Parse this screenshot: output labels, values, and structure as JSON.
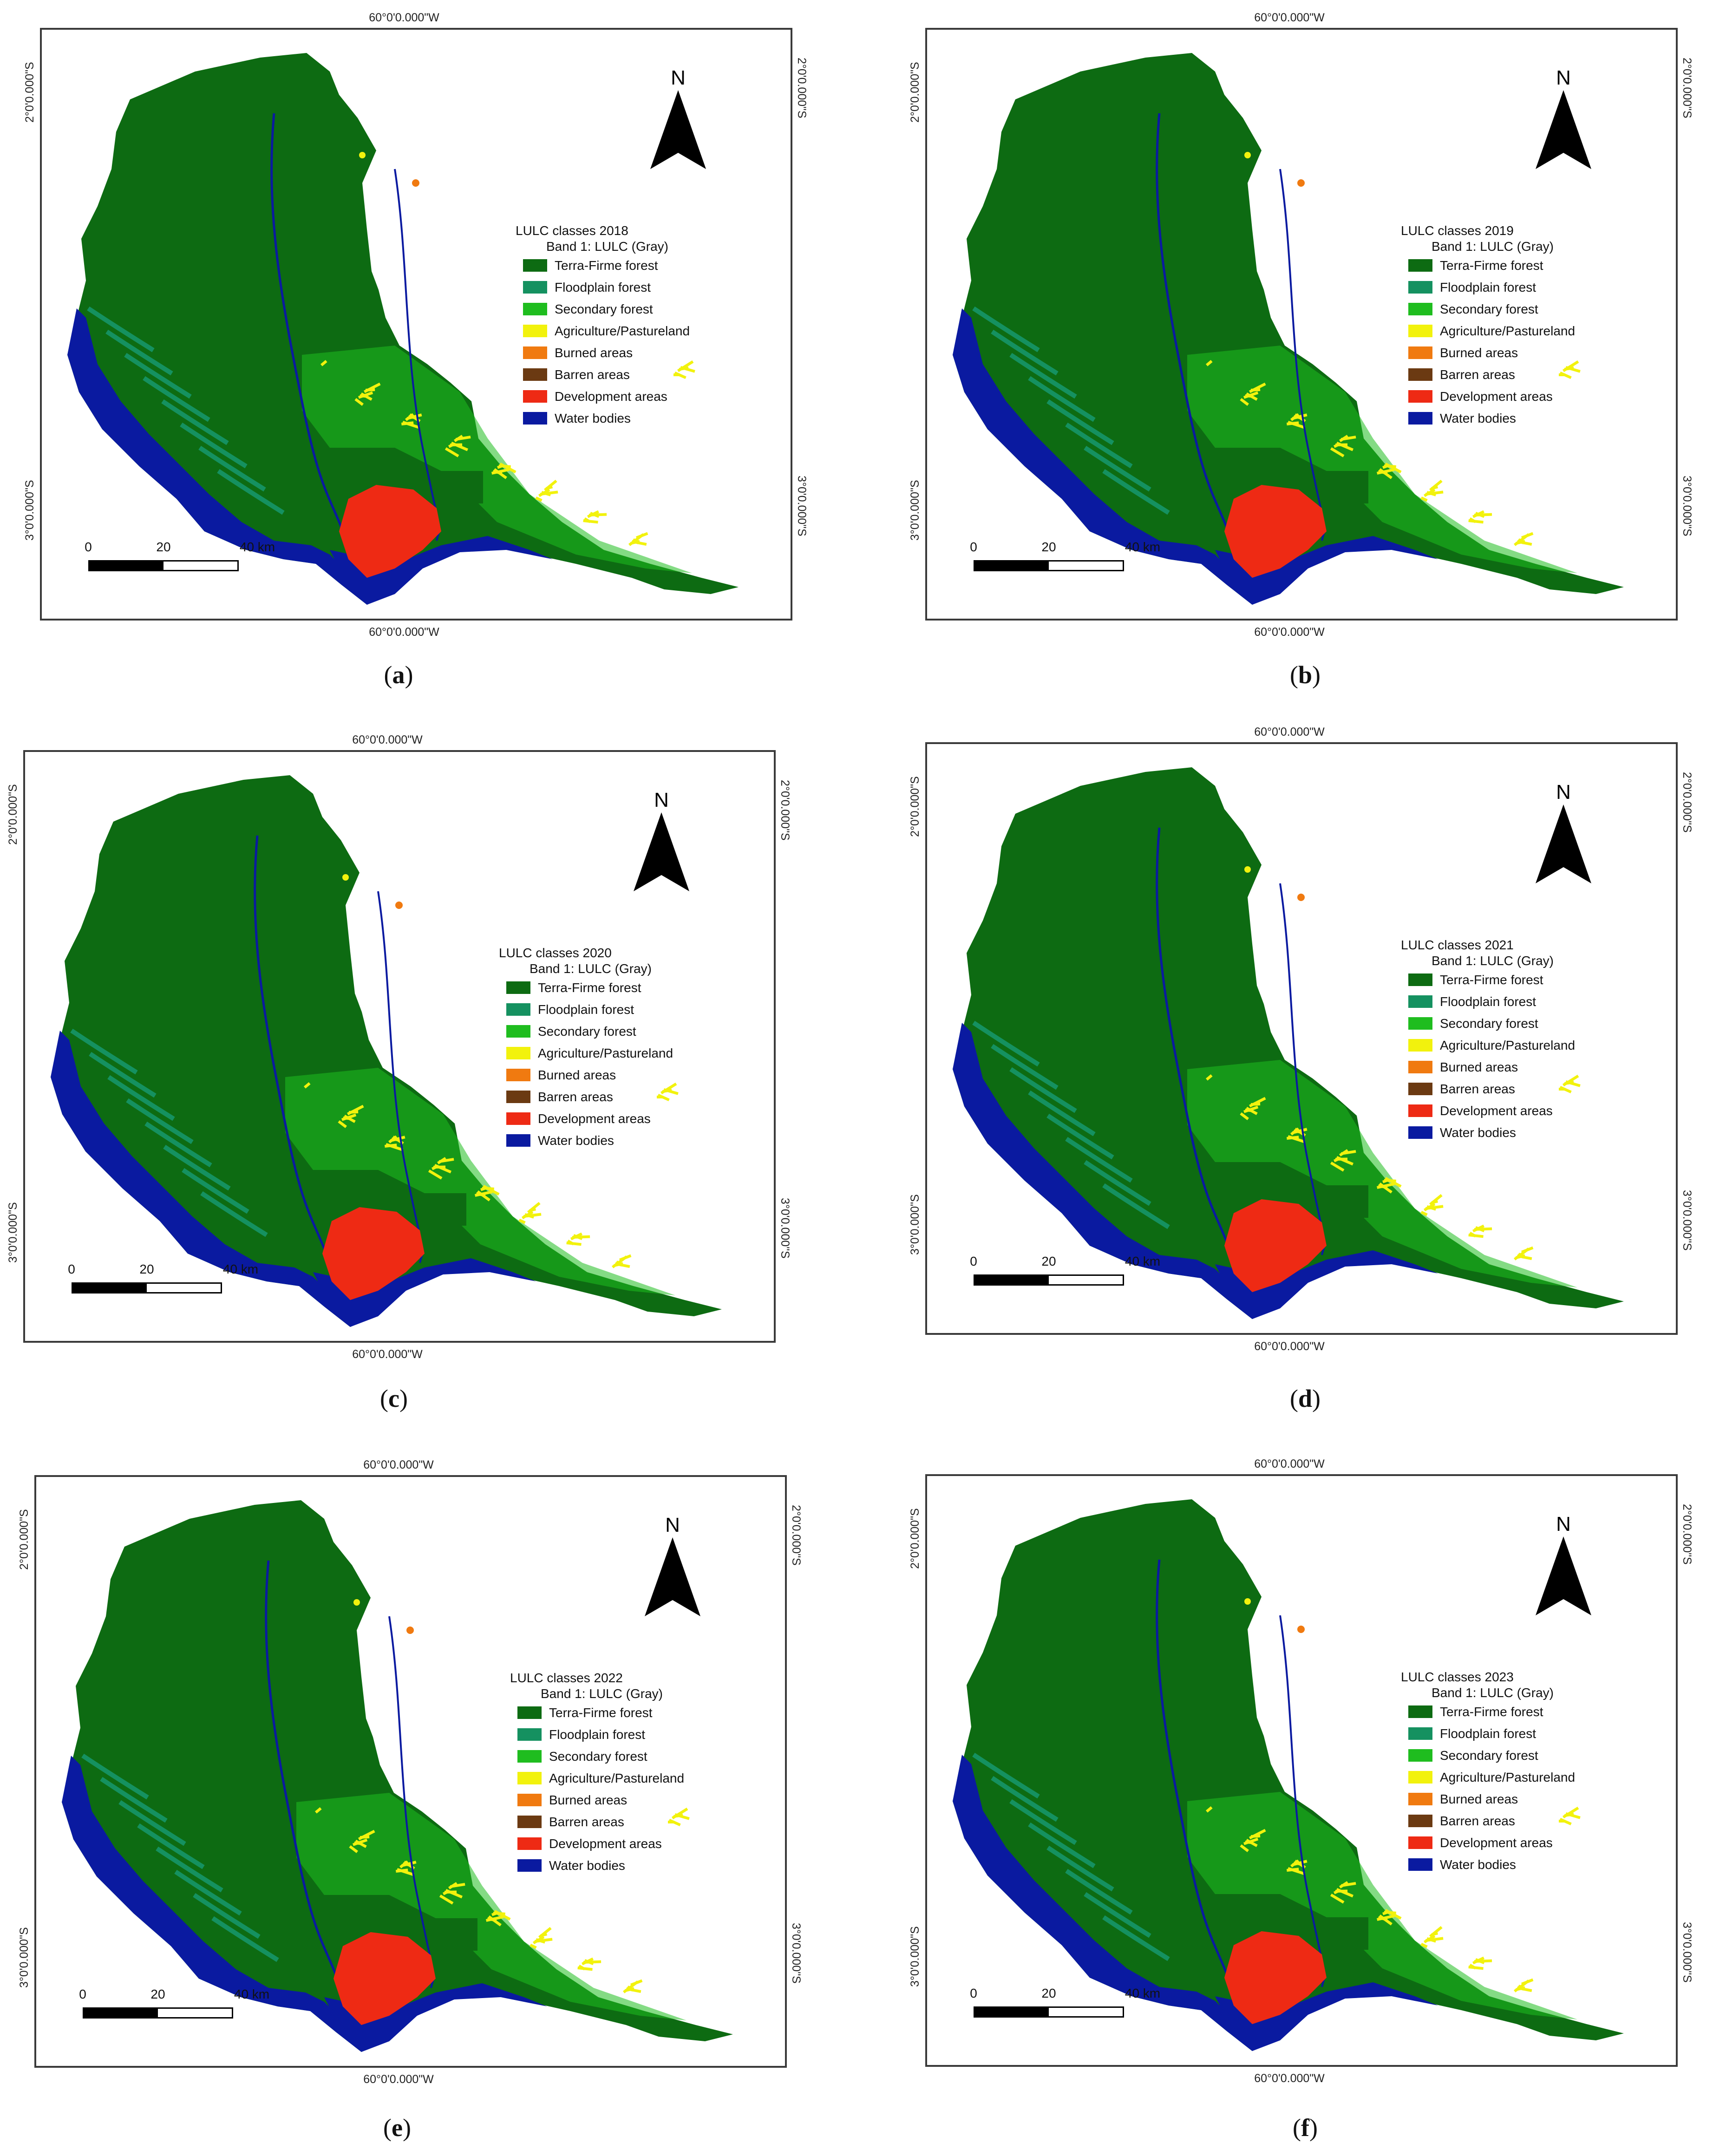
{
  "longitude_label": "60°0'0.000\"W",
  "latitude_north": "2°0'0.000\"S",
  "latitude_south": "3°0'0.000\"S",
  "north_arrow_label": "N",
  "legend": {
    "title_prefix": "LULC classes",
    "band": "Band 1: LULC (Gray)",
    "classes": [
      {
        "label": "Terra-Firme forest",
        "color": "#0d6b12"
      },
      {
        "label": "Floodplain forest",
        "color": "#159160"
      },
      {
        "label": "Secondary forest",
        "color": "#1fbd1f"
      },
      {
        "label": "Agriculture/Pastureland",
        "color": "#f2f20d"
      },
      {
        "label": "Burned areas",
        "color": "#f07a10"
      },
      {
        "label": "Barren areas",
        "color": "#6b3a12"
      },
      {
        "label": "Development areas",
        "color": "#ee2a14"
      },
      {
        "label": "Water bodies",
        "color": "#0a1aa0"
      }
    ]
  },
  "scale_bar": {
    "ticks": [
      "0",
      "20",
      "40 km"
    ]
  },
  "panels": [
    {
      "year": "2018",
      "title": "LULC classes 2018",
      "caption": "a"
    },
    {
      "year": "2019",
      "title": "LULC classes 2019",
      "caption": "b"
    },
    {
      "year": "2020",
      "title": "LULC classes 2020",
      "caption": "c"
    },
    {
      "year": "2021",
      "title": "LULC classes 2021",
      "caption": "d"
    },
    {
      "year": "2022",
      "title": "LULC classes 2022",
      "caption": "e"
    },
    {
      "year": "2023",
      "title": "LULC classes 2023",
      "caption": "f"
    }
  ]
}
